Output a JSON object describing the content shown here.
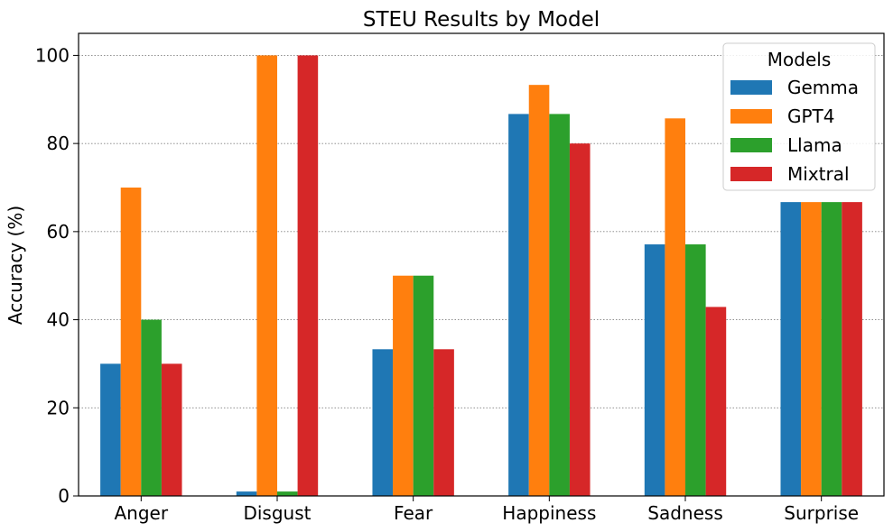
{
  "chart_data": {
    "type": "bar",
    "title": "STEU Results by Model",
    "xlabel": "",
    "ylabel": "Accuracy (%)",
    "ylim": [
      0,
      105
    ],
    "yticks": [
      0,
      20,
      40,
      60,
      80,
      100
    ],
    "grid": "y-dotted",
    "legend_title": "Models",
    "legend_position": "top-right",
    "categories": [
      "Anger",
      "Disgust",
      "Fear",
      "Happiness",
      "Sadness",
      "Surprise"
    ],
    "series": [
      {
        "name": "Gemma",
        "color": "#1f77b4",
        "values": [
          30,
          1,
          33.3,
          86.7,
          57.1,
          66.7
        ]
      },
      {
        "name": "GPT4",
        "color": "#ff7f0e",
        "values": [
          70,
          100,
          50,
          93.3,
          85.7,
          66.7
        ]
      },
      {
        "name": "Llama",
        "color": "#2ca02c",
        "values": [
          40,
          1,
          50,
          86.7,
          57.1,
          66.7
        ]
      },
      {
        "name": "Mixtral",
        "color": "#d62728",
        "values": [
          30,
          100,
          33.3,
          80,
          42.9,
          66.7
        ]
      }
    ]
  }
}
